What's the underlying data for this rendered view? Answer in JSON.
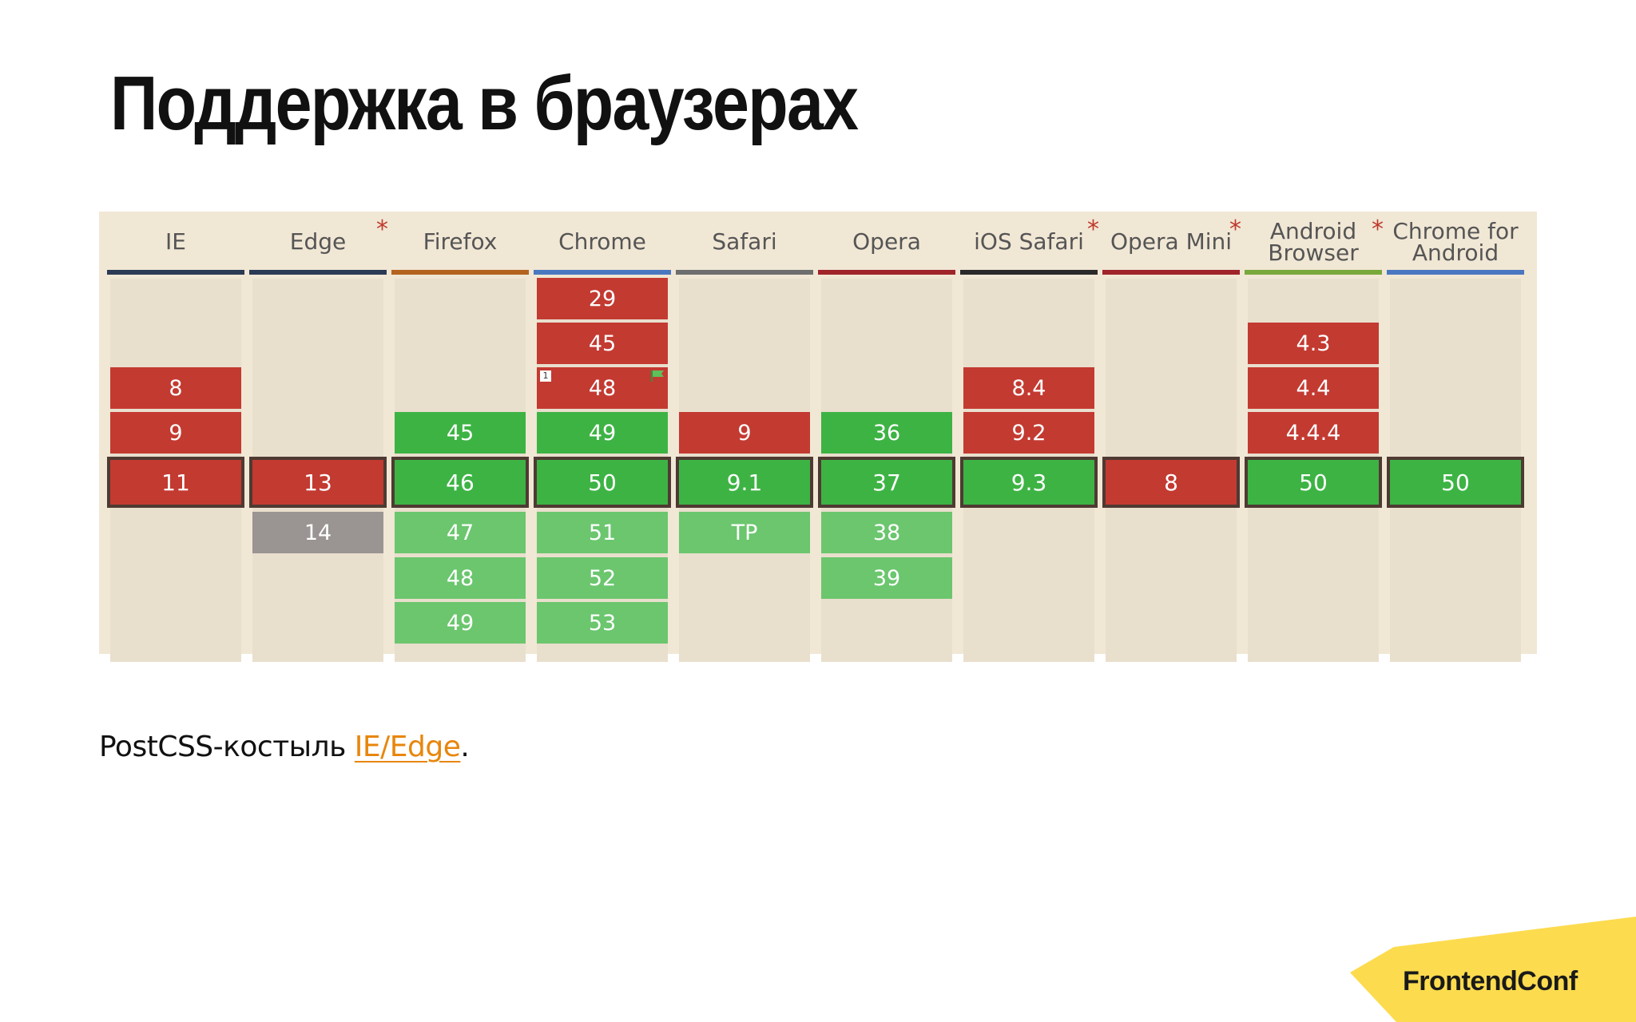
{
  "slide": {
    "title": "Поддержка в браузерах",
    "footnote_prefix": "PostCSS-костыль ",
    "footnote_link": "IE/Edge",
    "footnote_suffix": ".",
    "logo": "FrontendConf"
  },
  "caniuse": {
    "colors": {
      "unsupported": "#c33a31",
      "supported": "#3db344",
      "future_supported": "#6bc66e",
      "unknown": "#9a9493",
      "current_border": "#4e3a32",
      "background": "#f1e7d5",
      "asterisk": "#c0392b"
    },
    "browsers": [
      {
        "name": "IE",
        "asterisk": false,
        "bar_color": "#2b3a55",
        "past": [
          {
            "row": 2,
            "version": "8",
            "status": "red"
          },
          {
            "row": 3,
            "version": "9",
            "status": "red"
          }
        ],
        "current": {
          "version": "11",
          "status": "red"
        },
        "future": []
      },
      {
        "name": "Edge",
        "asterisk": true,
        "bar_color": "#2b3a55",
        "past": [],
        "current": {
          "version": "13",
          "status": "red"
        },
        "future": [
          {
            "row": 0,
            "version": "14",
            "status": "gray"
          }
        ]
      },
      {
        "name": "Firefox",
        "asterisk": false,
        "bar_color": "#b4641f",
        "past": [
          {
            "row": 3,
            "version": "45",
            "status": "green"
          }
        ],
        "current": {
          "version": "46",
          "status": "green"
        },
        "future": [
          {
            "row": 0,
            "version": "47",
            "status": "lgreen"
          },
          {
            "row": 1,
            "version": "48",
            "status": "lgreen"
          },
          {
            "row": 2,
            "version": "49",
            "status": "lgreen"
          }
        ]
      },
      {
        "name": "Chrome",
        "asterisk": false,
        "bar_color": "#4a78c0",
        "past": [
          {
            "row": 0,
            "version": "29",
            "status": "red"
          },
          {
            "row": 1,
            "version": "45",
            "status": "red"
          },
          {
            "row": 2,
            "version": "48",
            "status": "red",
            "note": "1",
            "flag": true
          },
          {
            "row": 3,
            "version": "49",
            "status": "green"
          }
        ],
        "current": {
          "version": "50",
          "status": "green"
        },
        "future": [
          {
            "row": 0,
            "version": "51",
            "status": "lgreen"
          },
          {
            "row": 1,
            "version": "52",
            "status": "lgreen"
          },
          {
            "row": 2,
            "version": "53",
            "status": "lgreen"
          }
        ]
      },
      {
        "name": "Safari",
        "asterisk": false,
        "bar_color": "#6e6e6e",
        "past": [
          {
            "row": 3,
            "version": "9",
            "status": "red"
          }
        ],
        "current": {
          "version": "9.1",
          "status": "green"
        },
        "future": [
          {
            "row": 0,
            "version": "TP",
            "status": "lgreen"
          }
        ]
      },
      {
        "name": "Opera",
        "asterisk": false,
        "bar_color": "#a0242a",
        "past": [
          {
            "row": 3,
            "version": "36",
            "status": "green"
          }
        ],
        "current": {
          "version": "37",
          "status": "green"
        },
        "future": [
          {
            "row": 0,
            "version": "38",
            "status": "lgreen"
          },
          {
            "row": 1,
            "version": "39",
            "status": "lgreen"
          }
        ]
      },
      {
        "name": "iOS Safari",
        "asterisk": true,
        "bar_color": "#2a2a2a",
        "past": [
          {
            "row": 2,
            "version": "8.4",
            "status": "red"
          },
          {
            "row": 3,
            "version": "9.2",
            "status": "red"
          }
        ],
        "current": {
          "version": "9.3",
          "status": "green"
        },
        "future": []
      },
      {
        "name": "Opera Mini",
        "asterisk": true,
        "bar_color": "#a0242a",
        "past": [],
        "current": {
          "version": "8",
          "status": "red"
        },
        "future": []
      },
      {
        "name": "Android Browser",
        "asterisk": true,
        "bar_color": "#78a93a",
        "past": [
          {
            "row": 1,
            "version": "4.3",
            "status": "red"
          },
          {
            "row": 2,
            "version": "4.4",
            "status": "red"
          },
          {
            "row": 3,
            "version": "4.4.4",
            "status": "red"
          }
        ],
        "current": {
          "version": "50",
          "status": "green"
        },
        "future": []
      },
      {
        "name": "Chrome for Android",
        "asterisk": false,
        "bar_color": "#4a78c0",
        "past": [],
        "current": {
          "version": "50",
          "status": "green"
        },
        "future": []
      }
    ]
  }
}
